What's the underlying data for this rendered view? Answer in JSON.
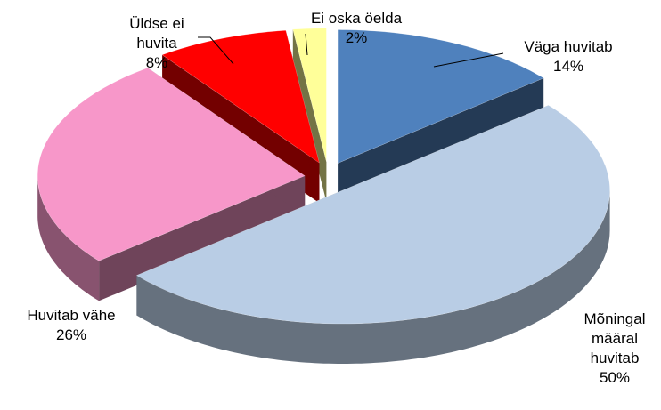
{
  "chart_data": {
    "type": "pie",
    "three_d": true,
    "exploded": true,
    "categories": [
      "Väga huvitab",
      "Mõningal määral huvitab",
      "Huvitab vähe",
      "Üldse ei huvita",
      "Ei oska öelda"
    ],
    "values": [
      14,
      50,
      26,
      8,
      2
    ],
    "value_labels": [
      "14%",
      "50%",
      "26%",
      "8%",
      "2%"
    ],
    "colors": [
      "#4f81bd",
      "#b9cde5",
      "#f797c9",
      "#ff0000",
      "#ffff99"
    ]
  }
}
